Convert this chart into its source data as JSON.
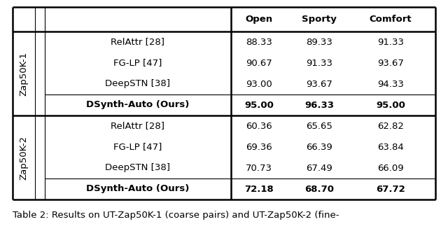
{
  "col_headers": [
    "Open",
    "Sporty",
    "Comfort"
  ],
  "section1_label": "Zap50K-1",
  "section2_label": "Zap50K-2",
  "section1_rows": [
    {
      "method": "RelAttr [28]",
      "open": "88.33",
      "sporty": "89.33",
      "comfort": "91.33",
      "bold": false
    },
    {
      "method": "FG-LP [47]",
      "open": "90.67",
      "sporty": "91.33",
      "comfort": "93.67",
      "bold": false
    },
    {
      "method": "DeepSTN [38]",
      "open": "93.00",
      "sporty": "93.67",
      "comfort": "94.33",
      "bold": false
    },
    {
      "method": "DSynth-Auto (Ours)",
      "open": "95.00",
      "sporty": "96.33",
      "comfort": "95.00",
      "bold": true
    }
  ],
  "section2_rows": [
    {
      "method": "RelAttr [28]",
      "open": "60.36",
      "sporty": "65.65",
      "comfort": "62.82",
      "bold": false
    },
    {
      "method": "FG-LP [47]",
      "open": "69.36",
      "sporty": "66.39",
      "comfort": "63.84",
      "bold": false
    },
    {
      "method": "DeepSTN [38]",
      "open": "70.73",
      "sporty": "67.49",
      "comfort": "66.09",
      "bold": false
    },
    {
      "method": "DSynth-Auto (Ours)",
      "open": "72.18",
      "sporty": "68.70",
      "comfort": "67.72",
      "bold": true
    }
  ],
  "caption": "Table 2: Results on UT-Zap50K-1 (coarse pairs) and UT-Zap50K-2 (fine-",
  "background_color": "#ffffff",
  "text_color": "#000000",
  "font_size": 9.5,
  "caption_font_size": 9.5,
  "lw_thick": 1.8,
  "lw_thin": 0.8
}
